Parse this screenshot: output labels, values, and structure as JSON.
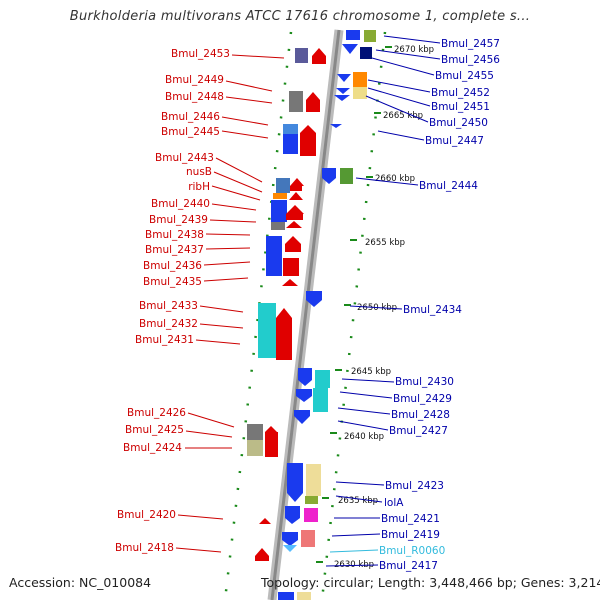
{
  "title": "Burkholderia multivorans ATCC 17616 chromosome 1, complete s...",
  "accession": "Accession: NC_010084",
  "summary": "Topology: circular; Length: 3,448,466 bp; Genes: 3,214",
  "kbp_markers": [
    {
      "label": "2670 kbp",
      "pos": 2670
    },
    {
      "label": "2665 kbp",
      "pos": 2665
    },
    {
      "label": "2660 kbp",
      "pos": 2660
    },
    {
      "label": "2655 kbp",
      "pos": 2655
    },
    {
      "label": "2650 kbp",
      "pos": 2650
    },
    {
      "label": "2645 kbp",
      "pos": 2645
    },
    {
      "label": "2640 kbp",
      "pos": 2640
    },
    {
      "label": "2635 kbp",
      "pos": 2635
    },
    {
      "label": "2630 kbp",
      "pos": 2630
    }
  ],
  "left_genes": [
    "Bmul_2453",
    "Bmul_2449",
    "Bmul_2448",
    "Bmul_2446",
    "Bmul_2445",
    "Bmul_2443",
    "nusB",
    "ribH",
    "Bmul_2440",
    "Bmul_2439",
    "Bmul_2438",
    "Bmul_2437",
    "Bmul_2436",
    "Bmul_2435",
    "Bmul_2433",
    "Bmul_2432",
    "Bmul_2431",
    "Bmul_2426",
    "Bmul_2425",
    "Bmul_2424",
    "Bmul_2420",
    "Bmul_2418"
  ],
  "right_genes": [
    "Bmul_2457",
    "Bmul_2456",
    "Bmul_2455",
    "Bmul_2452",
    "Bmul_2451",
    "Bmul_2450",
    "Bmul_2447",
    "Bmul_2444",
    "Bmul_2434",
    "Bmul_2430",
    "Bmul_2429",
    "Bmul_2428",
    "Bmul_2427",
    "Bmul_2423",
    "lolA",
    "Bmul_2421",
    "Bmul_2419",
    "Bmul_R0060",
    "Bmul_2417"
  ],
  "colors": {
    "reverse_label": "#cc0000",
    "forward_label": "#0000aa",
    "rna_label": "#33bbdd",
    "backbone": "#999999",
    "tick": "#1a8a1a"
  }
}
